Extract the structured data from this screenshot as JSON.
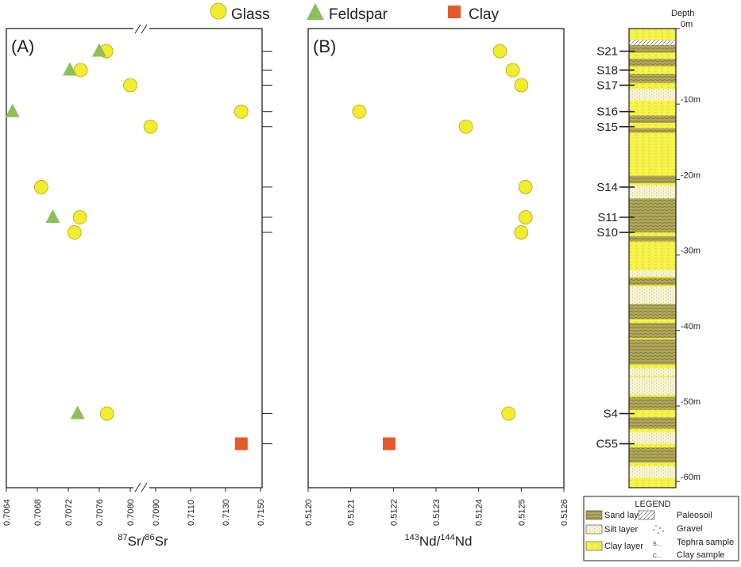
{
  "legend_top": {
    "glass": "Glass",
    "feldspar": "Feldspar",
    "clay": "Clay"
  },
  "colors": {
    "glass": "#f2ec2e",
    "glass_edge": "#b8a61a",
    "feldspar": "#8dc05a",
    "clay": "#e8592a",
    "clay_layer": "#f7f34a",
    "sand_layer": "#a8a050",
    "silt_layer": "#f7f3c0"
  },
  "chart_data": [
    {
      "type": "scatter",
      "panel": "(A)",
      "xlabel": {
        "pre": "87",
        "a": "Sr/",
        "sup": "86",
        "b": "Sr"
      },
      "xticks": [
        "0.7064",
        "0.7068",
        "0.7072",
        "0.7076",
        "0.7080",
        "0.7090",
        "0.7110",
        "0.7130",
        "0.7150"
      ],
      "broken_axis": "between 0.7080 and 0.7090",
      "ylim_depth_m": [
        0,
        60
      ],
      "series": [
        {
          "name": "Glass",
          "marker": "circle",
          "points": [
            {
              "sample": "S21",
              "x": 0.70769,
              "depth": 3.0
            },
            {
              "sample": "S18",
              "x": 0.70736,
              "depth": 5.5
            },
            {
              "sample": "S17",
              "x": 0.708,
              "depth": 7.5
            },
            {
              "sample": "S16",
              "x": 0.7139,
              "depth": 11.0
            },
            {
              "sample": "S15",
              "x": 0.7088,
              "depth": 13.0
            },
            {
              "sample": "S14",
              "x": 0.70685,
              "depth": 21.0
            },
            {
              "sample": "S11",
              "x": 0.70735,
              "depth": 25.0
            },
            {
              "sample": "S10",
              "x": 0.70728,
              "depth": 27.0
            },
            {
              "sample": "S4",
              "x": 0.7077,
              "depth": 51.0
            }
          ]
        },
        {
          "name": "Feldspar",
          "marker": "triangle",
          "points": [
            {
              "sample": "S21",
              "x": 0.7076,
              "depth": 3.0
            },
            {
              "sample": "S18",
              "x": 0.70722,
              "depth": 5.5
            },
            {
              "sample": "S16",
              "x": 0.70648,
              "depth": 11.0
            },
            {
              "sample": "S11",
              "x": 0.707,
              "depth": 25.0
            },
            {
              "sample": "S4",
              "x": 0.70732,
              "depth": 51.0
            }
          ]
        },
        {
          "name": "Clay",
          "marker": "square",
          "points": [
            {
              "sample": "C55",
              "x": 0.7139,
              "depth": 55.0
            }
          ]
        }
      ]
    },
    {
      "type": "scatter",
      "panel": "(B)",
      "xlabel": {
        "pre": "143",
        "a": "Nd/",
        "sup": "144",
        "b": "Nd"
      },
      "xticks": [
        "0.5120",
        "0.5121",
        "0.5122",
        "0.5123",
        "0.5124",
        "0.5125",
        "0.5126"
      ],
      "xlim": [
        0.512,
        0.5126
      ],
      "ylim_depth_m": [
        0,
        60
      ],
      "series": [
        {
          "name": "Glass",
          "marker": "circle",
          "points": [
            {
              "sample": "S21",
              "x": 0.51245,
              "depth": 3.0
            },
            {
              "sample": "S18",
              "x": 0.51248,
              "depth": 5.5
            },
            {
              "sample": "S17",
              "x": 0.5125,
              "depth": 7.5
            },
            {
              "sample": "S16",
              "x": 0.51212,
              "depth": 11.0
            },
            {
              "sample": "S15",
              "x": 0.51237,
              "depth": 13.0
            },
            {
              "sample": "S14",
              "x": 0.51251,
              "depth": 21.0
            },
            {
              "sample": "S11",
              "x": 0.51251,
              "depth": 25.0
            },
            {
              "sample": "S10",
              "x": 0.5125,
              "depth": 27.0
            },
            {
              "sample": "S4",
              "x": 0.51247,
              "depth": 51.0
            }
          ]
        },
        {
          "name": "Clay",
          "marker": "square",
          "points": [
            {
              "sample": "C55",
              "x": 0.51219,
              "depth": 55.0
            }
          ]
        }
      ]
    }
  ],
  "column": {
    "title": "Depth",
    "depth_ticks": [
      {
        "depth": 0,
        "label": "0m"
      },
      {
        "depth": 10,
        "label": "-10m"
      },
      {
        "depth": 20,
        "label": "-20m"
      },
      {
        "depth": 30,
        "label": "-30m"
      },
      {
        "depth": 40,
        "label": "-40m"
      },
      {
        "depth": 50,
        "label": "-50m"
      },
      {
        "depth": 60,
        "label": "-60m"
      }
    ],
    "samples": [
      {
        "label": "S21",
        "depth": 3.0
      },
      {
        "label": "S18",
        "depth": 5.5
      },
      {
        "label": "S17",
        "depth": 7.5
      },
      {
        "label": "S16",
        "depth": 11.0
      },
      {
        "label": "S15",
        "depth": 13.0
      },
      {
        "label": "S14",
        "depth": 21.0
      },
      {
        "label": "S11",
        "depth": 25.0
      },
      {
        "label": "S10",
        "depth": 27.0
      },
      {
        "label": "S4",
        "depth": 51.0
      },
      {
        "label": "C55",
        "depth": 55.0
      }
    ]
  },
  "legend_box": {
    "title": "LEGEND",
    "sand": "Sand layer",
    "silt": "Silt layer",
    "clay": "Clay layer",
    "paleosoil": "Paleosoil",
    "gravel": "Gravel",
    "tephra": "Tephra sample",
    "clay_sample": "Clay sample",
    "tephra_symbol": "S...",
    "clay_symbol": "C..."
  }
}
